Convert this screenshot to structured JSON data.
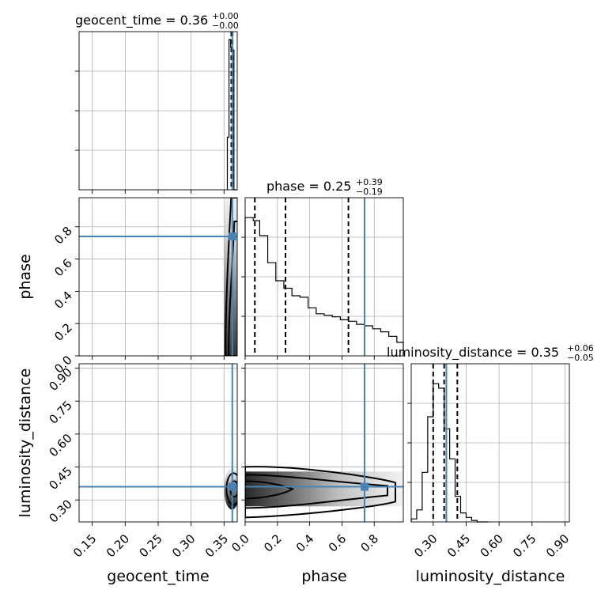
{
  "chart_data": {
    "type": "corner",
    "parameters": [
      {
        "name": "geocent_time",
        "axis_label": "geocent_time",
        "range": [
          0.13,
          0.37
        ],
        "ticks": [
          "0.15",
          "0.20",
          "0.25",
          "0.30",
          "0.35"
        ],
        "tick_values": [
          0.15,
          0.2,
          0.25,
          0.3,
          0.35
        ],
        "title_prefix": "geocent_time = 0.36",
        "title_sup": "+0.00",
        "title_sub": "−0.00",
        "median": 0.362,
        "q_low": 0.361,
        "q_high": 0.363,
        "truth": 0.3625,
        "hist_edges": [
          0.355,
          0.3575,
          0.36,
          0.3625,
          0.365,
          0.37
        ],
        "hist_counts": [
          0.35,
          1.0,
          0.95,
          0.93,
          0
        ]
      },
      {
        "name": "phase",
        "axis_label": "phase",
        "range": [
          0,
          0.98
        ],
        "ticks": [
          "0.0",
          "0.2",
          "0.4",
          "0.6",
          "0.8"
        ],
        "tick_values": [
          0,
          0.2,
          0.4,
          0.6,
          0.8
        ],
        "title_prefix": "phase = 0.25",
        "title_sup": "+0.39",
        "title_sub": "−0.19",
        "median": 0.25,
        "q_low": 0.06,
        "q_high": 0.64,
        "truth": 0.74,
        "hist_edges": [
          0,
          0.05,
          0.09,
          0.14,
          0.19,
          0.24,
          0.29,
          0.34,
          0.39,
          0.44,
          0.49,
          0.54,
          0.59,
          0.64,
          0.69,
          0.74,
          0.79,
          0.84,
          0.89,
          0.94,
          0.98
        ],
        "hist_counts": [
          0.92,
          0.9,
          0.8,
          0.62,
          0.5,
          0.45,
          0.4,
          0.39,
          0.32,
          0.28,
          0.27,
          0.26,
          0.24,
          0.23,
          0.21,
          0.2,
          0.18,
          0.16,
          0.13,
          0.09
        ]
      },
      {
        "name": "luminosity_distance",
        "axis_label": "luminosity_distance",
        "range": [
          0.2,
          0.92
        ],
        "ticks": [
          "0.30",
          "0.45",
          "0.60",
          "0.75",
          "0.90"
        ],
        "tick_values": [
          0.3,
          0.45,
          0.6,
          0.75,
          0.9
        ],
        "title_prefix": "luminosity_distance = 0.35",
        "title_sup": "+0.06",
        "title_sub": "−0.05",
        "median": 0.35,
        "q_low": 0.3,
        "q_high": 0.41,
        "truth": 0.36,
        "hist_edges": [
          0.2,
          0.225,
          0.25,
          0.275,
          0.3,
          0.325,
          0.35,
          0.375,
          0.4,
          0.425,
          0.45,
          0.475,
          0.5,
          0.525,
          0.55
        ],
        "hist_counts": [
          0.02,
          0.08,
          0.33,
          0.7,
          0.92,
          0.89,
          0.62,
          0.42,
          0.17,
          0.06,
          0.03,
          0.01,
          0,
          0
        ]
      }
    ],
    "truth_color": "#4682b4",
    "grid": true
  }
}
